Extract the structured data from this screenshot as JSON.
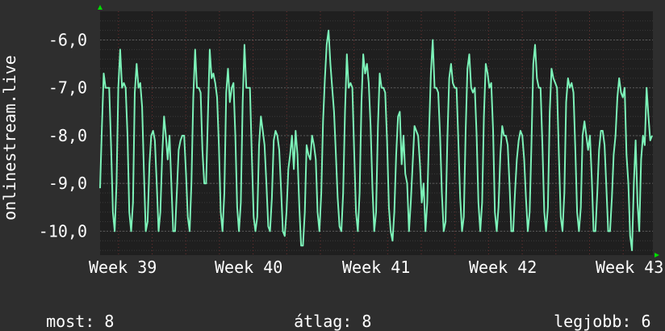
{
  "chart_data": {
    "type": "line",
    "ylabel": "onlinestream.live",
    "xticks": [
      "Week 39",
      "Week 40",
      "Week 41",
      "Week 42",
      "Week 43"
    ],
    "yticks": [
      "-6,0",
      "-7,0",
      "-8,0",
      "-9,0",
      "-10,0"
    ],
    "ytick_values": [
      -6,
      -7,
      -8,
      -9,
      -10
    ],
    "ylim": [
      -10.5,
      -5.4
    ],
    "grid": true,
    "series": [
      {
        "color": "#7cf2b8",
        "values": [
          -9.1,
          -7.8,
          -6.7,
          -7.0,
          -7.0,
          -7.0,
          -8.2,
          -9.6,
          -10.0,
          -9.0,
          -7.0,
          -6.2,
          -7.0,
          -6.9,
          -7.0,
          -8.0,
          -9.6,
          -10.0,
          -9.4,
          -7.1,
          -6.5,
          -7.0,
          -6.9,
          -7.4,
          -8.8,
          -10.0,
          -9.8,
          -8.6,
          -8.0,
          -7.9,
          -8.1,
          -9.0,
          -10.0,
          -9.6,
          -8.4,
          -7.6,
          -8.0,
          -8.5,
          -8.0,
          -9.0,
          -10.0,
          -10.0,
          -9.2,
          -8.3,
          -8.1,
          -8.0,
          -8.0,
          -8.8,
          -9.7,
          -10.0,
          -9.0,
          -7.2,
          -6.2,
          -7.0,
          -7.0,
          -7.1,
          -8.3,
          -9.0,
          -9.0,
          -7.6,
          -6.2,
          -6.8,
          -6.7,
          -6.9,
          -7.2,
          -8.2,
          -9.6,
          -10.0,
          -9.2,
          -7.1,
          -6.6,
          -7.3,
          -7.0,
          -6.9,
          -8.0,
          -9.5,
          -10.0,
          -9.4,
          -7.3,
          -6.1,
          -7.0,
          -7.0,
          -7.0,
          -8.4,
          -9.7,
          -10.0,
          -9.7,
          -8.2,
          -7.6,
          -7.9,
          -8.2,
          -9.0,
          -9.9,
          -10.0,
          -9.3,
          -8.1,
          -7.9,
          -8.0,
          -8.3,
          -9.1,
          -10.0,
          -10.1,
          -9.6,
          -8.7,
          -8.4,
          -8.0,
          -8.7,
          -7.9,
          -8.4,
          -9.5,
          -10.3,
          -10.3,
          -9.6,
          -8.2,
          -8.4,
          -8.5,
          -8.0,
          -8.2,
          -8.5,
          -9.6,
          -10.0,
          -9.2,
          -7.7,
          -6.8,
          -6.1,
          -5.8,
          -6.5,
          -7.0,
          -7.5,
          -8.4,
          -9.3,
          -9.9,
          -10.0,
          -9.2,
          -7.5,
          -6.3,
          -7.0,
          -6.9,
          -7.0,
          -8.3,
          -9.6,
          -10.0,
          -9.2,
          -7.3,
          -6.3,
          -6.7,
          -6.5,
          -6.9,
          -7.8,
          -9.1,
          -10.0,
          -9.6,
          -7.8,
          -6.7,
          -7.0,
          -7.0,
          -7.1,
          -8.1,
          -9.5,
          -10.0,
          -10.2,
          -9.6,
          -8.4,
          -7.6,
          -7.5,
          -8.6,
          -8.0,
          -8.8,
          -9.0,
          -10.0,
          -9.4,
          -8.6,
          -7.8,
          -7.9,
          -8.0,
          -8.6,
          -9.4,
          -9.0,
          -10.0,
          -9.4,
          -7.9,
          -6.7,
          -6.0,
          -7.0,
          -7.0,
          -7.1,
          -8.0,
          -9.2,
          -10.0,
          -9.8,
          -8.1,
          -6.8,
          -6.5,
          -6.9,
          -7.0,
          -7.0,
          -8.1,
          -9.3,
          -10.0,
          -9.7,
          -7.9,
          -6.6,
          -6.3,
          -7.0,
          -7.1,
          -7.0,
          -8.0,
          -9.4,
          -10.0,
          -9.4,
          -7.6,
          -6.5,
          -6.7,
          -7.0,
          -6.9,
          -7.9,
          -9.6,
          -10.0,
          -9.5,
          -8.4,
          -7.8,
          -8.0,
          -8.0,
          -8.2,
          -9.0,
          -10.0,
          -10.0,
          -9.2,
          -8.5,
          -8.1,
          -7.9,
          -8.0,
          -8.5,
          -9.3,
          -10.0,
          -9.6,
          -8.2,
          -6.5,
          -6.1,
          -6.8,
          -7.0,
          -7.0,
          -8.2,
          -9.6,
          -10.0,
          -9.5,
          -7.5,
          -6.6,
          -6.8,
          -6.9,
          -7.0,
          -8.4,
          -9.7,
          -10.0,
          -9.2,
          -7.3,
          -6.8,
          -7.0,
          -6.9,
          -7.1,
          -8.3,
          -9.6,
          -10.0,
          -9.5,
          -8.0,
          -7.7,
          -8.0,
          -8.3,
          -8.0,
          -8.9,
          -10.0,
          -10.0,
          -9.2,
          -8.3,
          -7.9,
          -7.9,
          -8.2,
          -9.1,
          -10.0,
          -10.0,
          -9.3,
          -8.4,
          -8.0,
          -7.2,
          -6.8,
          -7.1,
          -7.2,
          -7.0,
          -8.4,
          -9.0,
          -10.1,
          -10.4,
          -9.0,
          -8.1,
          -9.4,
          -10.0,
          -8.5,
          -8.0,
          -8.2,
          -7.0,
          -7.6,
          -8.1,
          -8.0
        ]
      }
    ]
  },
  "stats": {
    "current_label": "most:",
    "current_value": "8",
    "avg_label": "átlag:",
    "avg_value": "8",
    "max_label": "legjobb:",
    "max_value": "6"
  },
  "colors": {
    "background": "#2e2e2e",
    "plot_background": "#1f1f1f",
    "grid_major": "#5a5a5a",
    "grid_minor_red": "#6e3030",
    "line": "#7cf2b8",
    "axis_arrow": "#00dd00",
    "text": "#ffffff"
  }
}
